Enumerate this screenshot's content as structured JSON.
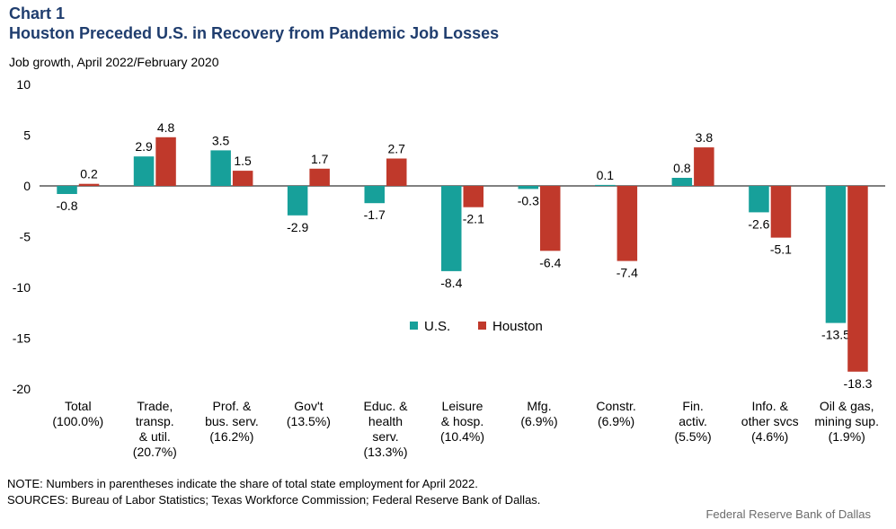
{
  "header": {
    "label": "Chart 1",
    "title": "Houston Preceded U.S. in Recovery from Pandemic Job Losses"
  },
  "footer": {
    "note": "NOTE: Numbers in parentheses indicate the share of total state employment for April 2022.",
    "sources": "SOURCES: Bureau of Labor Statistics; Texas Workforce Commission; Federal Reserve Bank of Dallas.",
    "credit": "Federal Reserve Bank of Dallas"
  },
  "chart_data": {
    "type": "bar",
    "ylabel": "Job growth, April 2022/February 2020",
    "ylim": [
      -20,
      10
    ],
    "yticks": [
      10,
      5,
      0,
      -5,
      -10,
      -15,
      -20
    ],
    "legend_position": "center",
    "categories": [
      [
        "Total",
        "(100.0%)"
      ],
      [
        "Trade,",
        "transp.",
        "& util.",
        "(20.7%)"
      ],
      [
        "Prof. &",
        "bus. serv.",
        "(16.2%)"
      ],
      [
        "Gov't",
        "(13.5%)"
      ],
      [
        "Educ. &",
        "health",
        "serv.",
        "(13.3%)"
      ],
      [
        "Leisure",
        "& hosp.",
        "(10.4%)"
      ],
      [
        "Mfg.",
        "(6.9%)"
      ],
      [
        "Constr.",
        "(6.9%)"
      ],
      [
        "Fin.",
        "activ.",
        "(5.5%)"
      ],
      [
        "Info. &",
        "other svcs",
        "(4.6%)"
      ],
      [
        "Oil & gas,",
        "mining sup.",
        "(1.9%)"
      ]
    ],
    "series": [
      {
        "name": "U.S.",
        "color": "#17a09a",
        "values": [
          -0.8,
          2.9,
          3.5,
          -2.9,
          -1.7,
          -8.4,
          -0.3,
          0.1,
          0.8,
          -2.6,
          -13.5
        ],
        "labels": [
          "-0.8",
          "2.9",
          "3.5",
          "-2.9",
          "-1.7",
          "-8.4",
          "-0.3",
          "0.1",
          "0.8",
          "-2.6",
          "-13.5"
        ]
      },
      {
        "name": "Houston",
        "color": "#c0392b",
        "values": [
          0.2,
          4.8,
          1.5,
          1.7,
          2.7,
          -2.1,
          -6.4,
          -7.4,
          3.8,
          -5.1,
          -18.3
        ],
        "labels": [
          "0.2",
          "4.8",
          "1.5",
          "1.7",
          "2.7",
          "-2.1",
          "-6.4",
          "-7.4",
          "3.8",
          "-5.1",
          "-18.3"
        ]
      }
    ]
  }
}
